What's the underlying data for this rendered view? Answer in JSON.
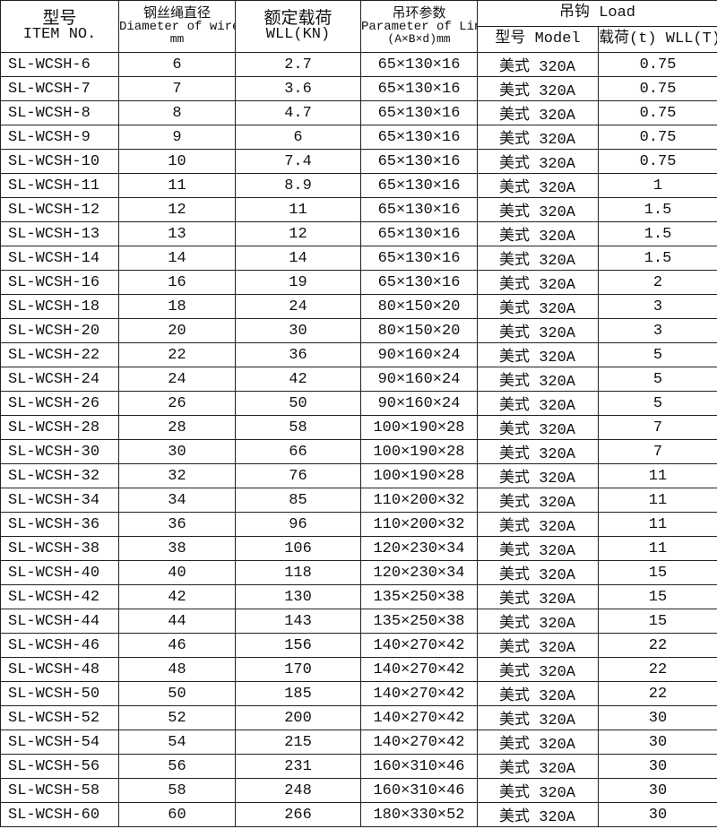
{
  "header": {
    "item_cn": "型号",
    "item_en": "ITEM NO.",
    "dia_cn": "钢丝绳直径",
    "dia_en": "Diameter of wire",
    "dia_unit": "mm",
    "wll_cn": "额定载荷",
    "wll_en": "WLL(KN)",
    "link_cn": "吊环参数",
    "link_en": "Parameter of Link",
    "link_unit": "(A×B×d)mm",
    "load": "吊钩 Load",
    "model": "型号 Model",
    "load_wll": "载荷(t) WLL(T)"
  },
  "rows": [
    [
      "SL-WCSH-6",
      "6",
      "2.7",
      "65×130×16",
      "美式 320A",
      "0.75"
    ],
    [
      "SL-WCSH-7",
      "7",
      "3.6",
      "65×130×16",
      "美式 320A",
      "0.75"
    ],
    [
      "SL-WCSH-8",
      "8",
      "4.7",
      "65×130×16",
      "美式 320A",
      "0.75"
    ],
    [
      "SL-WCSH-9",
      "9",
      "6",
      "65×130×16",
      "美式 320A",
      "0.75"
    ],
    [
      "SL-WCSH-10",
      "10",
      "7.4",
      "65×130×16",
      "美式 320A",
      "0.75"
    ],
    [
      "SL-WCSH-11",
      "11",
      "8.9",
      "65×130×16",
      "美式 320A",
      "1"
    ],
    [
      "SL-WCSH-12",
      "12",
      "11",
      "65×130×16",
      "美式 320A",
      "1.5"
    ],
    [
      "SL-WCSH-13",
      "13",
      "12",
      "65×130×16",
      "美式 320A",
      "1.5"
    ],
    [
      "SL-WCSH-14",
      "14",
      "14",
      "65×130×16",
      "美式 320A",
      "1.5"
    ],
    [
      "SL-WCSH-16",
      "16",
      "19",
      "65×130×16",
      "美式 320A",
      "2"
    ],
    [
      "SL-WCSH-18",
      "18",
      "24",
      "80×150×20",
      "美式 320A",
      "3"
    ],
    [
      "SL-WCSH-20",
      "20",
      "30",
      "80×150×20",
      "美式 320A",
      "3"
    ],
    [
      "SL-WCSH-22",
      "22",
      "36",
      "90×160×24",
      "美式 320A",
      "5"
    ],
    [
      "SL-WCSH-24",
      "24",
      "42",
      "90×160×24",
      "美式 320A",
      "5"
    ],
    [
      "SL-WCSH-26",
      "26",
      "50",
      "90×160×24",
      "美式 320A",
      "5"
    ],
    [
      "SL-WCSH-28",
      "28",
      "58",
      "100×190×28",
      "美式 320A",
      "7"
    ],
    [
      "SL-WCSH-30",
      "30",
      "66",
      "100×190×28",
      "美式 320A",
      "7"
    ],
    [
      "SL-WCSH-32",
      "32",
      "76",
      "100×190×28",
      "美式 320A",
      "11"
    ],
    [
      "SL-WCSH-34",
      "34",
      "85",
      "110×200×32",
      "美式 320A",
      "11"
    ],
    [
      "SL-WCSH-36",
      "36",
      "96",
      "110×200×32",
      "美式 320A",
      "11"
    ],
    [
      "SL-WCSH-38",
      "38",
      "106",
      "120×230×34",
      "美式 320A",
      "11"
    ],
    [
      "SL-WCSH-40",
      "40",
      "118",
      "120×230×34",
      "美式 320A",
      "15"
    ],
    [
      "SL-WCSH-42",
      "42",
      "130",
      "135×250×38",
      "美式 320A",
      "15"
    ],
    [
      "SL-WCSH-44",
      "44",
      "143",
      "135×250×38",
      "美式 320A",
      "15"
    ],
    [
      "SL-WCSH-46",
      "46",
      "156",
      "140×270×42",
      "美式 320A",
      "22"
    ],
    [
      "SL-WCSH-48",
      "48",
      "170",
      "140×270×42",
      "美式 320A",
      "22"
    ],
    [
      "SL-WCSH-50",
      "50",
      "185",
      "140×270×42",
      "美式 320A",
      "22"
    ],
    [
      "SL-WCSH-52",
      "52",
      "200",
      "140×270×42",
      "美式 320A",
      "30"
    ],
    [
      "SL-WCSH-54",
      "54",
      "215",
      "140×270×42",
      "美式 320A",
      "30"
    ],
    [
      "SL-WCSH-56",
      "56",
      "231",
      "160×310×46",
      "美式 320A",
      "30"
    ],
    [
      "SL-WCSH-58",
      "58",
      "248",
      "160×310×46",
      "美式 320A",
      "30"
    ],
    [
      "SL-WCSH-60",
      "60",
      "266",
      "180×330×52",
      "美式 320A",
      "30"
    ]
  ]
}
